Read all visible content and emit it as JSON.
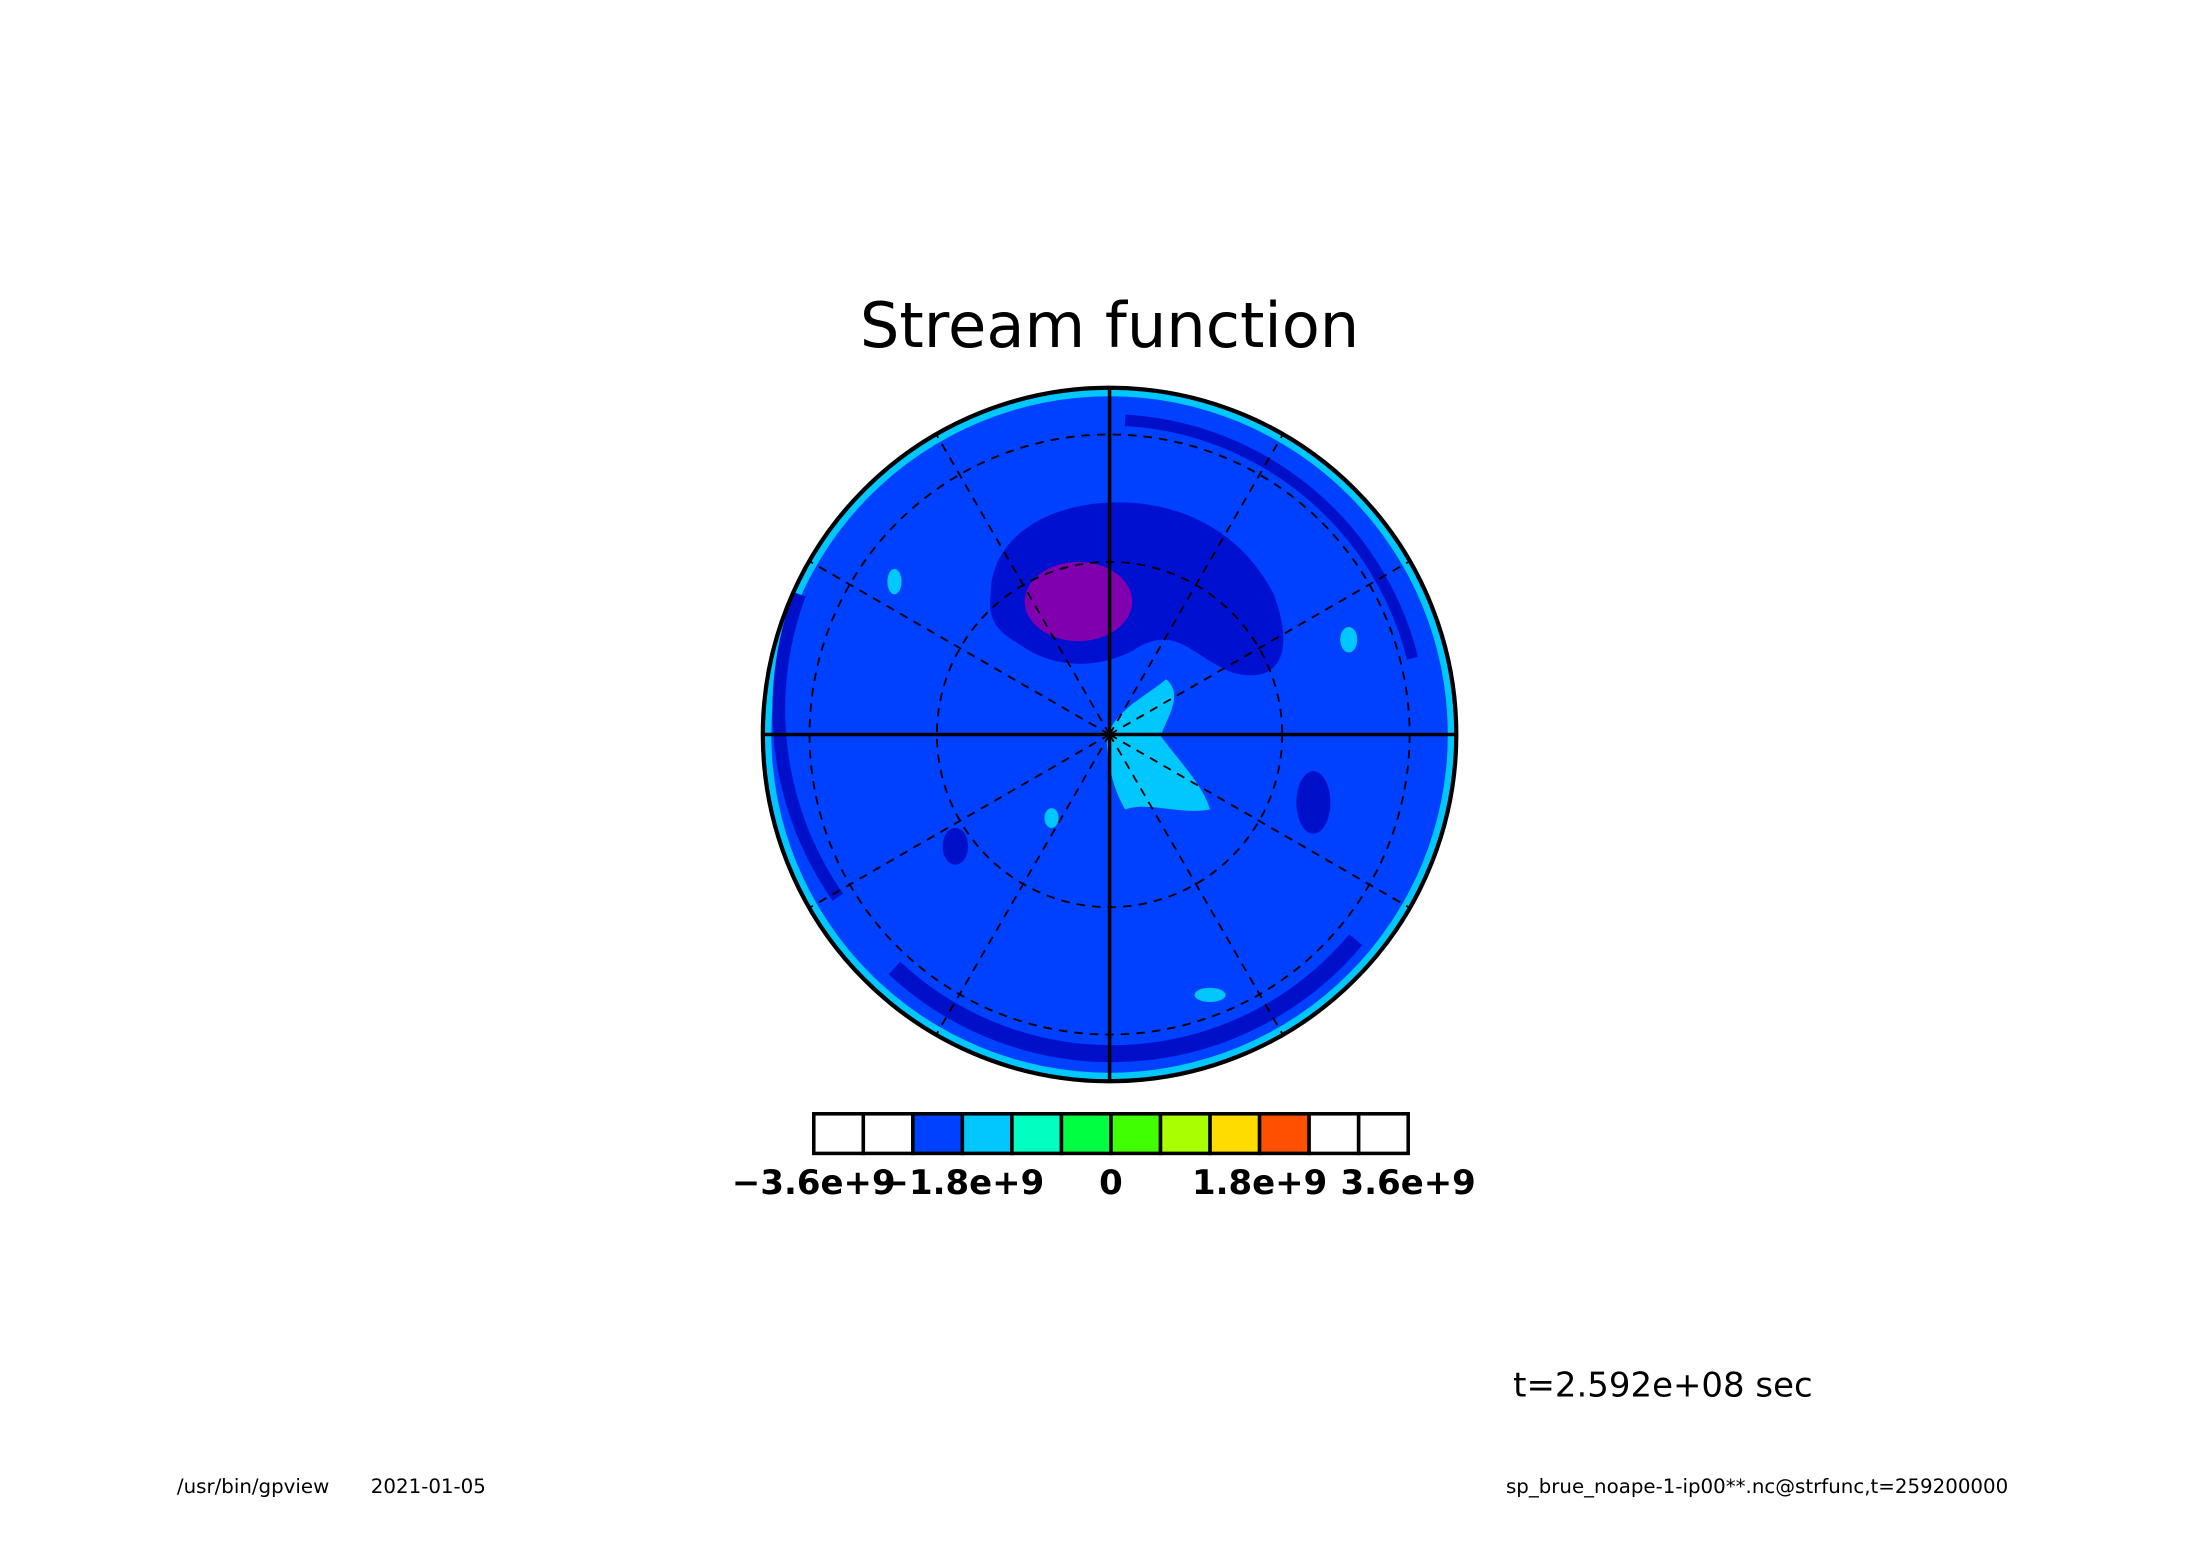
{
  "chart_data": {
    "type": "contour",
    "title": "Stream function",
    "colorbar": {
      "levels": [
        -3600000000,
        -3000000000,
        -2400000000,
        -1800000000,
        -1200000000,
        -600000000,
        0,
        600000000,
        1200000000,
        1800000000,
        2400000000,
        3000000000,
        3600000000
      ],
      "colors": [
        "#ffffff",
        "#ffffff",
        "#0040ff",
        "#00c8ff",
        "#00ffc0",
        "#00ff40",
        "#40ff00",
        "#a8ff00",
        "#ffdc00",
        "#ff5000",
        "#ffffff",
        "#ffffff"
      ],
      "ticks": [
        {
          "value": -3600000000,
          "label": "−3.6e+9"
        },
        {
          "value": -1800000000,
          "label": "−1.8e+9"
        },
        0,
        {
          "value": 1800000000,
          "label": "1.8e+9"
        },
        {
          "value": 3600000000,
          "label": "3.6e+9"
        }
      ]
    },
    "annotation": "t=2.592e+08 sec",
    "footer_left": [
      "/usr/bin/gpview",
      "2021-01-05"
    ],
    "footer_right": "sp_brue_noape-1-ip00**.nc@strfunc,t=259200000"
  }
}
